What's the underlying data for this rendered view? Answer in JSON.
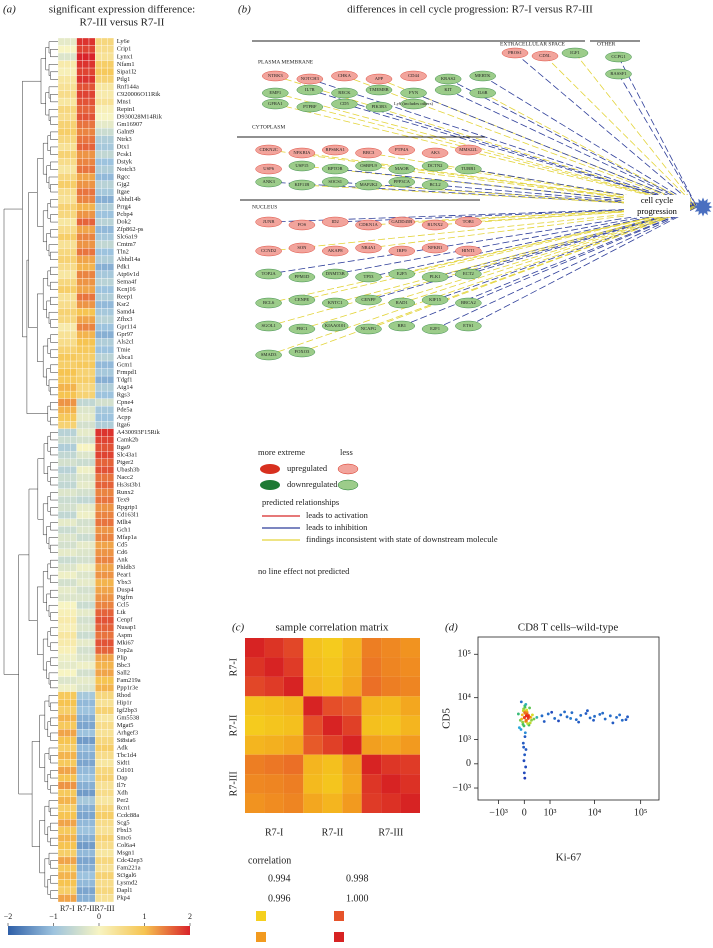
{
  "heatmap": {
    "panel_label": "(a)",
    "title": [
      "significant expression difference:",
      "R7-III versus R7-II"
    ],
    "columns": [
      "R7-I",
      "R7-II",
      "R7-III"
    ],
    "genes": [
      "Ly6e",
      "Crip1",
      "Lynx1",
      "Nfam1",
      "Sipa1l2",
      "Ptlg1",
      "Rnf144a",
      "C920006O11Rik",
      "Mns1",
      "Repin1",
      "D930028M14Rik",
      "Gm16907",
      "Galnt9",
      "Ntrk3",
      "Dtx1",
      "Pcsk1",
      "Dstyk",
      "Notch3",
      "Rgcc",
      "Gjg2",
      "Itgae",
      "Abhd14b",
      "Prrg4",
      "Pcbp4",
      "Dok2",
      "Zfp862-ps",
      "Slc6a19",
      "Cmtm7",
      "Tln2",
      "Abhd14a",
      "Pdk1",
      "Atp6v1d",
      "Sema4f",
      "Kcnj16",
      "Reep1",
      "Ksr2",
      "Samd4",
      "Zfhx3",
      "Gpr114",
      "Gpr97",
      "Als2cl",
      "Tmie",
      "Abca1",
      "Gcm1",
      "Frmpd1",
      "Tdgf1",
      "Atg14",
      "Rgs3",
      "Cpne4",
      "Pde5a",
      "Acpp",
      "Itga6",
      "A430093F15Rik",
      "Camk2b",
      "Itga9",
      "Slc43a1",
      "Ptger2",
      "Ubash3b",
      "Nacc2",
      "Hs3st3b1",
      "Runx2",
      "Tex9",
      "Rpgrip1",
      "Cd163l1",
      "Mllt4",
      "Gch1",
      "Mfap1a",
      "Cd5",
      "Cd6",
      "Ank",
      "Phldb3",
      "Pear1",
      "Ybx3",
      "Dusp4",
      "Ptgfrn",
      "Ccl5",
      "Ltk",
      "Cenpf",
      "Nusap1",
      "Aspm",
      "Mki67",
      "Top2a",
      "Plip",
      "Bbc3",
      "Sall2",
      "Fam219a",
      "Ppp1r3e",
      "Rhod",
      "Hip1r",
      "Igf2bp3",
      "Gm5538",
      "Mgat5",
      "Arhgef3",
      "St8sia6",
      "Adk",
      "Tbc1d4",
      "Sidt1",
      "Cd101",
      "Dap",
      "Il7r",
      "Xdh",
      "Per2",
      "Rcn1",
      "Ccdc88a",
      "Scg5",
      "Fbxl3",
      "Smc6",
      "Col6a4",
      "Msgn1",
      "Cdc42ep3",
      "Fam221a",
      "St3gal6",
      "Lysmd2",
      "Dapl1",
      "Pkp4"
    ],
    "values": [
      [
        -0.2,
        1.9,
        0.6
      ],
      [
        0.0,
        1.8,
        0.5
      ],
      [
        -0.3,
        2.0,
        0.4
      ],
      [
        0.2,
        1.9,
        0.8
      ],
      [
        0.1,
        1.8,
        0.9
      ],
      [
        0.3,
        1.9,
        0.7
      ],
      [
        0.4,
        1.7,
        0.3
      ],
      [
        0.5,
        1.8,
        0.2
      ],
      [
        0.3,
        1.7,
        0.4
      ],
      [
        0.6,
        1.6,
        0.1
      ],
      [
        0.5,
        1.7,
        0.0
      ],
      [
        0.7,
        1.5,
        -0.2
      ],
      [
        0.8,
        1.4,
        -0.5
      ],
      [
        0.6,
        1.5,
        -0.8
      ],
      [
        0.4,
        1.6,
        -0.9
      ],
      [
        0.7,
        1.3,
        -0.6
      ],
      [
        0.5,
        1.4,
        -1.0
      ],
      [
        0.3,
        1.5,
        -0.8
      ],
      [
        0.6,
        1.2,
        -1.1
      ],
      [
        0.8,
        1.3,
        -0.7
      ],
      [
        0.5,
        1.5,
        -0.9
      ],
      [
        0.4,
        1.4,
        -1.2
      ],
      [
        0.7,
        1.1,
        -0.8
      ],
      [
        0.6,
        1.3,
        -1.0
      ],
      [
        0.3,
        1.6,
        -0.7
      ],
      [
        0.5,
        1.2,
        -1.1
      ],
      [
        0.8,
        1.4,
        -0.9
      ],
      [
        0.4,
        1.3,
        -0.6
      ],
      [
        0.6,
        1.5,
        -1.0
      ],
      [
        0.7,
        1.2,
        -0.8
      ],
      [
        0.5,
        1.1,
        -1.2
      ],
      [
        0.3,
        1.4,
        -0.9
      ],
      [
        0.6,
        1.3,
        -0.7
      ],
      [
        0.8,
        1.2,
        -1.0
      ],
      [
        0.4,
        1.5,
        -0.8
      ],
      [
        0.5,
        1.3,
        -1.1
      ],
      [
        0.7,
        1.0,
        -0.9
      ],
      [
        0.6,
        1.2,
        -0.7
      ],
      [
        0.2,
        1.4,
        -1.0
      ],
      [
        0.4,
        1.1,
        -1.2
      ],
      [
        0.5,
        1.0,
        -0.8
      ],
      [
        0.7,
        0.9,
        -1.0
      ],
      [
        0.9,
        0.8,
        -0.7
      ],
      [
        0.8,
        0.9,
        -1.1
      ],
      [
        1.0,
        0.7,
        -0.9
      ],
      [
        0.9,
        0.8,
        -1.2
      ],
      [
        1.1,
        0.6,
        -0.8
      ],
      [
        1.0,
        0.7,
        -1.0
      ],
      [
        1.3,
        -0.6,
        -0.4
      ],
      [
        1.1,
        -0.3,
        -0.9
      ],
      [
        0.9,
        -0.2,
        -1.0
      ],
      [
        0.7,
        -0.4,
        -0.8
      ],
      [
        -0.7,
        -0.2,
        1.9
      ],
      [
        -0.5,
        -0.4,
        1.8
      ],
      [
        -0.8,
        0.0,
        1.7
      ],
      [
        -0.6,
        -0.3,
        1.8
      ],
      [
        -0.4,
        -0.5,
        1.6
      ],
      [
        -0.7,
        -0.1,
        1.7
      ],
      [
        -0.5,
        -0.3,
        1.5
      ],
      [
        -0.6,
        -0.2,
        1.6
      ],
      [
        -0.3,
        -0.4,
        1.4
      ],
      [
        -0.5,
        -0.6,
        1.5
      ],
      [
        -0.4,
        -0.2,
        1.3
      ],
      [
        -0.6,
        -0.1,
        1.4
      ],
      [
        -0.2,
        -0.4,
        1.5
      ],
      [
        -0.5,
        -0.3,
        1.3
      ],
      [
        -0.3,
        -0.5,
        1.4
      ],
      [
        -0.4,
        -0.2,
        1.2
      ],
      [
        -0.2,
        -0.3,
        1.3
      ],
      [
        -0.5,
        -0.4,
        1.4
      ],
      [
        -0.3,
        -0.1,
        1.2
      ],
      [
        -0.1,
        -0.3,
        1.3
      ],
      [
        -0.4,
        -0.2,
        1.1
      ],
      [
        -0.2,
        -0.4,
        1.2
      ],
      [
        -0.3,
        -0.3,
        1.3
      ],
      [
        0.0,
        -0.5,
        1.4
      ],
      [
        0.1,
        -0.2,
        1.6
      ],
      [
        0.2,
        -0.4,
        1.7
      ],
      [
        0.1,
        -0.3,
        1.6
      ],
      [
        0.3,
        -0.5,
        1.5
      ],
      [
        0.2,
        -0.2,
        1.7
      ],
      [
        0.1,
        -0.4,
        1.6
      ],
      [
        -0.1,
        -0.3,
        1.2
      ],
      [
        -0.2,
        -0.1,
        1.1
      ],
      [
        0.0,
        -0.4,
        1.2
      ],
      [
        -0.3,
        -0.2,
        1.0
      ],
      [
        -0.1,
        -0.3,
        1.1
      ],
      [
        0.9,
        -0.9,
        0.6
      ],
      [
        1.0,
        -1.1,
        0.4
      ],
      [
        0.8,
        -1.0,
        0.7
      ],
      [
        1.1,
        -1.2,
        0.3
      ],
      [
        0.9,
        -1.3,
        0.5
      ],
      [
        1.2,
        -1.0,
        0.4
      ],
      [
        1.0,
        -1.4,
        0.6
      ],
      [
        0.8,
        -1.1,
        0.8
      ],
      [
        1.1,
        -1.2,
        0.5
      ],
      [
        0.9,
        -1.3,
        0.3
      ],
      [
        1.2,
        -1.1,
        0.6
      ],
      [
        1.0,
        -1.0,
        0.7
      ],
      [
        1.3,
        -1.2,
        0.4
      ],
      [
        0.9,
        -1.4,
        0.5
      ],
      [
        1.1,
        -0.9,
        0.3
      ],
      [
        0.8,
        -1.2,
        0.6
      ],
      [
        1.0,
        -1.3,
        0.8
      ],
      [
        1.2,
        -1.1,
        0.5
      ],
      [
        0.9,
        -1.0,
        0.4
      ],
      [
        1.1,
        -1.2,
        0.7
      ],
      [
        1.0,
        -1.4,
        0.5
      ],
      [
        0.8,
        -1.1,
        0.3
      ],
      [
        1.2,
        -1.3,
        0.6
      ],
      [
        0.9,
        -1.2,
        0.4
      ],
      [
        1.1,
        -1.0,
        0.7
      ],
      [
        1.0,
        -1.1,
        0.5
      ],
      [
        0.8,
        -1.3,
        0.6
      ],
      [
        1.2,
        -1.2,
        0.4
      ]
    ],
    "range": [
      -2,
      2
    ],
    "colors": [
      "#2e5fa8",
      "#9dc3de",
      "#f7f4c2",
      "#f6c451",
      "#d9232a"
    ],
    "ticks": [
      {
        "value": -2,
        "label": "−2"
      },
      {
        "value": -1,
        "label": "−1"
      },
      0,
      1,
      2
    ]
  },
  "network": {
    "panel_label": "(b)",
    "title": "differences in cell cycle progression: R7-I versus R7-III",
    "target": "cell cycle progression",
    "sections": [
      {
        "label": "EXTRACELLULAR SPACE",
        "upregulated": [
          "PROS1",
          "CD5L"
        ],
        "downregulated": [
          "IGF1"
        ]
      },
      {
        "label": "PLASMA MEMBRANE",
        "upregulated": [
          "NTRK3",
          "NOTCH3",
          "CHKA",
          "APP",
          "CD44"
        ],
        "downregulated": [
          "KRAS2",
          "MERTK",
          "EMP1",
          "IL7R",
          "RECK",
          "TMEM8B",
          "FYN",
          "KIT",
          "IL6R",
          "GFRA1",
          "PTPRF",
          "CD5",
          "PIK3R3",
          "Ly6 (includes others)"
        ]
      },
      {
        "label": "CYTOPLASM",
        "upregulated": [
          "CDKN2C",
          "NFKBIA",
          "RPS6KA1",
          "BBC3",
          "PTP4A",
          "AK3",
          "MMS22L",
          "USP6"
        ],
        "downregulated": [
          "USP15",
          "RPTOR",
          "OSBPL9",
          "MAOB",
          "DCTN2",
          "TUBB1",
          "ANK3",
          "KIF11B",
          "SOCS1",
          "MAP2K2",
          "PPP3CA",
          "BCL2"
        ]
      },
      {
        "label": "NUCLEUS",
        "upregulated": [
          "JUNB",
          "FOS",
          "ID2",
          "CDKN1A",
          "GADD45B",
          "RUNX2",
          "TOB1",
          "CCND2",
          "SON",
          "AKAP8",
          "NR4A1",
          "IRF9",
          "NFKB1",
          "HINT1"
        ],
        "downregulated": [
          "TOP2A",
          "PPM1D",
          "DNMT3B",
          "TP53",
          "E2F5",
          "PLK1",
          "ECT2",
          "BCL6",
          "CENPE",
          "KNTC1",
          "CENPF",
          "RAD1",
          "KIF15",
          "BRCA2",
          "SGOL1",
          "PRC1",
          "KIAA0101",
          "NCAPG",
          "RB1",
          "E2F1",
          "ETS1",
          "SMAD3",
          "FOXO3"
        ]
      },
      {
        "label": "OTHER",
        "upregulated": [],
        "downregulated": [
          "CCPG1",
          "RASSF1"
        ]
      }
    ],
    "relationships": [
      {
        "label": "leads to activation",
        "color": "#d62728"
      },
      {
        "label": "leads to inhibition",
        "color": "#2f3f9a",
        "molecules": [
          "KRAS2",
          "MERTK",
          "IL7R",
          "FYN",
          "KIT",
          "CD5",
          "RPTOR",
          "TUBB1",
          "ANK3",
          "SOCS1",
          "TOP2A",
          "DNMT3B",
          "TP53",
          "PLK1",
          "ECT2",
          "CENPF",
          "RB1",
          "E2F1",
          "ETS1",
          "PROS1",
          "CCPG1",
          "RASSF1",
          "BCL2",
          "NOTCH3",
          "KIF15",
          "BRCA2",
          "JUNB",
          "ID2"
        ]
      },
      {
        "label": "findings inconsistent with state of downstream molecule",
        "color": "#e3d43a",
        "molecules": [
          "EMP1",
          "IL6R",
          "GFRA1",
          "PTPRF",
          "NTRK3",
          "CHKA",
          "APP",
          "USP15",
          "OSBPL9",
          "DCTN2",
          "KIF11B",
          "MAP2K2",
          "CDKN2C",
          "NFKBIA",
          "BBC3",
          "E2F5",
          "BCL6",
          "CENPE",
          "KNTC1",
          "RAD1",
          "SGOL1",
          "PRC1",
          "NCAPG",
          "SMAD3",
          "FOXO3",
          "CDKN1A",
          "GADD45B",
          "RUNX2",
          "TOB1",
          "CCND2",
          "NR4A1",
          "CD5L",
          "IGF1"
        ]
      }
    ],
    "legend": {
      "more_extreme": "more extreme",
      "less": "less",
      "upregulated": {
        "label": "upregulated",
        "colors": [
          "#d7301f",
          "#f2a49c"
        ]
      },
      "downregulated": {
        "label": "downregulated",
        "colors": [
          "#1e7a34",
          "#9ccc8a"
        ]
      },
      "relationships_title": "predicted relationships",
      "no_line": "no line effect not predicted"
    }
  },
  "correlation": {
    "panel_label": "(c)",
    "title": "sample correlation matrix",
    "groups": [
      "R7-I",
      "R7-II",
      "R7-III"
    ],
    "matrix": [
      [
        1,
        0.9993,
        0.9985,
        0.9945,
        0.9942,
        0.995,
        0.9968,
        0.9965,
        0.9962
      ],
      [
        0.9993,
        1,
        0.999,
        0.9947,
        0.9944,
        0.9952,
        0.997,
        0.9966,
        0.9964
      ],
      [
        0.9985,
        0.999,
        1,
        0.995,
        0.9946,
        0.9955,
        0.9972,
        0.9968,
        0.9966
      ],
      [
        0.9945,
        0.9947,
        0.995,
        1,
        0.9982,
        0.9978,
        0.995,
        0.9948,
        0.9955
      ],
      [
        0.9942,
        0.9944,
        0.9946,
        0.9982,
        1,
        0.9988,
        0.9946,
        0.9944,
        0.995
      ],
      [
        0.995,
        0.9952,
        0.9955,
        0.9978,
        0.9988,
        1,
        0.9958,
        0.9955,
        0.996
      ],
      [
        0.9968,
        0.997,
        0.9972,
        0.995,
        0.9946,
        0.9958,
        1,
        0.9992,
        0.999
      ],
      [
        0.9965,
        0.9966,
        0.9968,
        0.9948,
        0.9944,
        0.9955,
        0.9992,
        1,
        0.9994
      ],
      [
        0.9962,
        0.9964,
        0.9966,
        0.9955,
        0.995,
        0.996,
        0.999,
        0.9994,
        1
      ]
    ],
    "legend_title": "correlation",
    "scale": [
      {
        "value": 0.994,
        "label": "0.994",
        "color": "#f5d01e"
      },
      {
        "value": 0.996,
        "label": "0.996",
        "color": "#f29a1f"
      },
      {
        "value": 0.998,
        "label": "0.998",
        "color": "#e6532a"
      },
      {
        "value": 1,
        "label": "1.000",
        "color": "#d72323"
      }
    ]
  },
  "flow": {
    "panel_label": "(d)",
    "title": "CD8 T cells–wild-type",
    "xlabel": "Ki-67",
    "ylabel": "CD5",
    "scale": "biexponential",
    "xlim": [
      -3000,
      250000
    ],
    "ylim": [
      -2000,
      250000
    ],
    "xticks": [
      {
        "value": -1000,
        "label": "−10³"
      },
      0,
      {
        "value": 1000,
        "label": "10³"
      },
      {
        "value": 10000,
        "label": "10⁴"
      },
      {
        "value": 100000,
        "label": "10⁵"
      }
    ],
    "yticks": [
      {
        "value": -1000,
        "label": "−10³"
      },
      0,
      {
        "value": 1000,
        "label": "10³"
      },
      {
        "value": 10000,
        "label": "10⁴"
      },
      {
        "value": 100000,
        "label": "10⁵"
      }
    ],
    "density_colors": [
      "#1f2bb0",
      "#2aa8e0",
      "#3cc060",
      "#f2e21d",
      "#e8281e"
    ],
    "x": [
      -120,
      -60,
      0,
      40,
      80,
      120,
      -30,
      10,
      60,
      100,
      -80,
      20,
      150,
      -10,
      70,
      30,
      -50,
      90,
      5,
      45,
      -100,
      130,
      -20,
      55,
      85,
      15,
      -40,
      110,
      35,
      65,
      200,
      250,
      180,
      300,
      -150,
      -180,
      160,
      220,
      -90,
      140,
      400,
      600,
      900,
      1300,
      1800,
      2500,
      3200,
      4000,
      5000,
      6500,
      8000,
      10000,
      13000,
      17000,
      22000,
      30000,
      40000,
      52000,
      700,
      1100,
      1600,
      2200,
      3000,
      4500,
      7000,
      9500,
      15000,
      25000,
      35000,
      48000,
      20,
      -30,
      50,
      10,
      -10,
      40,
      0,
      30,
      -20,
      15
    ],
    "y": [
      3000,
      4000,
      3500,
      2800,
      4200,
      3300,
      5000,
      4500,
      3800,
      2500,
      3200,
      6000,
      3600,
      2200,
      5200,
      4800,
      2700,
      4100,
      3400,
      7000,
      1800,
      3900,
      5500,
      3000,
      4600,
      6500,
      2400,
      3700,
      4300,
      2900,
      3500,
      4000,
      2600,
      3200,
      2000,
      4200,
      5800,
      3000,
      8000,
      2300,
      3500,
      3800,
      4200,
      3300,
      4000,
      3600,
      4500,
      3100,
      3900,
      4300,
      3400,
      3700,
      4100,
      3200,
      3800,
      3500,
      3000,
      3600,
      2800,
      4600,
      2900,
      4700,
      3300,
      2700,
      5000,
      3000,
      4400,
      2600,
      4000,
      3100,
      1200,
      800,
      500,
      300,
      100,
      -100,
      -300,
      1500,
      600,
      -500
    ]
  }
}
